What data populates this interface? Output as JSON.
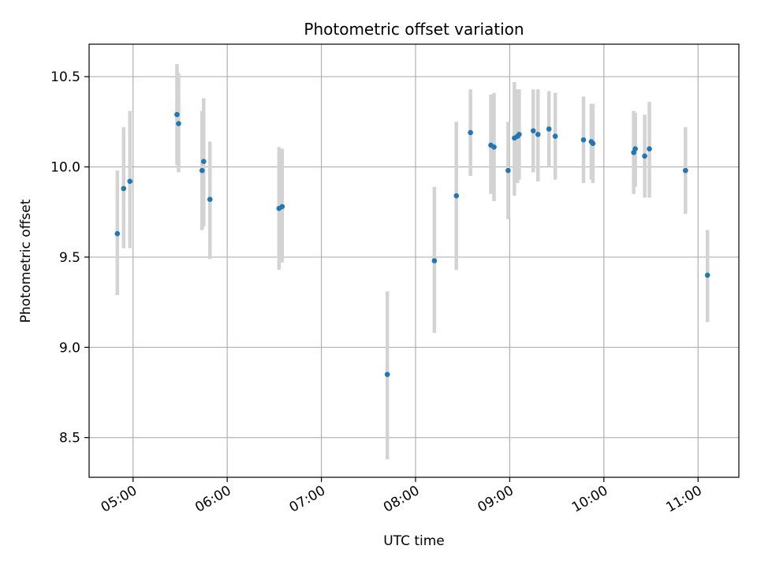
{
  "chart_data": {
    "type": "scatter",
    "title": "Photometric offset variation",
    "xlabel": "UTC time",
    "ylabel": "Photometric offset",
    "grid": true,
    "xlim": [
      "04:32",
      "11:26"
    ],
    "ylim": [
      8.28,
      10.68
    ],
    "x_ticks": [
      "05:00",
      "06:00",
      "07:00",
      "08:00",
      "09:00",
      "10:00",
      "11:00"
    ],
    "y_ticks": [
      "8.5",
      "9.0",
      "9.5",
      "10.0",
      "10.5"
    ],
    "colors": {
      "point": "#1f77b4",
      "errorbar": "#d3d3d3",
      "grid": "#b0b0b0"
    },
    "series": [
      {
        "points": [
          {
            "x": "04:50",
            "y": 9.63,
            "lo": 9.29,
            "hi": 9.98
          },
          {
            "x": "04:54",
            "y": 9.88,
            "lo": 9.55,
            "hi": 10.22
          },
          {
            "x": "04:58",
            "y": 9.92,
            "lo": 9.55,
            "hi": 10.31
          },
          {
            "x": "05:28",
            "y": 10.29,
            "lo": 10.01,
            "hi": 10.57
          },
          {
            "x": "05:29",
            "y": 10.24,
            "lo": 9.97,
            "hi": 10.52
          },
          {
            "x": "05:44",
            "y": 9.98,
            "lo": 9.65,
            "hi": 10.31
          },
          {
            "x": "05:45",
            "y": 10.03,
            "lo": 9.67,
            "hi": 10.38
          },
          {
            "x": "05:49",
            "y": 9.82,
            "lo": 9.49,
            "hi": 10.14
          },
          {
            "x": "06:33",
            "y": 9.77,
            "lo": 9.43,
            "hi": 10.11
          },
          {
            "x": "06:35",
            "y": 9.78,
            "lo": 9.47,
            "hi": 10.1
          },
          {
            "x": "07:42",
            "y": 8.85,
            "lo": 8.38,
            "hi": 9.31
          },
          {
            "x": "08:12",
            "y": 9.48,
            "lo": 9.08,
            "hi": 9.89
          },
          {
            "x": "08:26",
            "y": 9.84,
            "lo": 9.43,
            "hi": 10.25
          },
          {
            "x": "08:35",
            "y": 10.19,
            "lo": 9.95,
            "hi": 10.43
          },
          {
            "x": "08:48",
            "y": 10.12,
            "lo": 9.85,
            "hi": 10.4
          },
          {
            "x": "08:50",
            "y": 10.11,
            "lo": 9.81,
            "hi": 10.41
          },
          {
            "x": "08:59",
            "y": 9.98,
            "lo": 9.71,
            "hi": 10.25
          },
          {
            "x": "09:03",
            "y": 10.16,
            "lo": 9.84,
            "hi": 10.47
          },
          {
            "x": "09:05",
            "y": 10.17,
            "lo": 9.91,
            "hi": 10.43
          },
          {
            "x": "09:06",
            "y": 10.18,
            "lo": 9.93,
            "hi": 10.43
          },
          {
            "x": "09:15",
            "y": 10.2,
            "lo": 9.97,
            "hi": 10.43
          },
          {
            "x": "09:18",
            "y": 10.18,
            "lo": 9.92,
            "hi": 10.43
          },
          {
            "x": "09:25",
            "y": 10.21,
            "lo": 10.0,
            "hi": 10.42
          },
          {
            "x": "09:29",
            "y": 10.17,
            "lo": 9.93,
            "hi": 10.41
          },
          {
            "x": "09:47",
            "y": 10.15,
            "lo": 9.91,
            "hi": 10.39
          },
          {
            "x": "09:52",
            "y": 10.14,
            "lo": 9.93,
            "hi": 10.35
          },
          {
            "x": "09:53",
            "y": 10.13,
            "lo": 9.91,
            "hi": 10.35
          },
          {
            "x": "10:19",
            "y": 10.08,
            "lo": 9.85,
            "hi": 10.31
          },
          {
            "x": "10:20",
            "y": 10.1,
            "lo": 9.89,
            "hi": 10.3
          },
          {
            "x": "10:26",
            "y": 10.06,
            "lo": 9.83,
            "hi": 10.29
          },
          {
            "x": "10:29",
            "y": 10.1,
            "lo": 9.83,
            "hi": 10.36
          },
          {
            "x": "10:52",
            "y": 9.98,
            "lo": 9.74,
            "hi": 10.22
          },
          {
            "x": "11:06",
            "y": 9.4,
            "lo": 9.14,
            "hi": 9.65
          }
        ]
      }
    ]
  }
}
